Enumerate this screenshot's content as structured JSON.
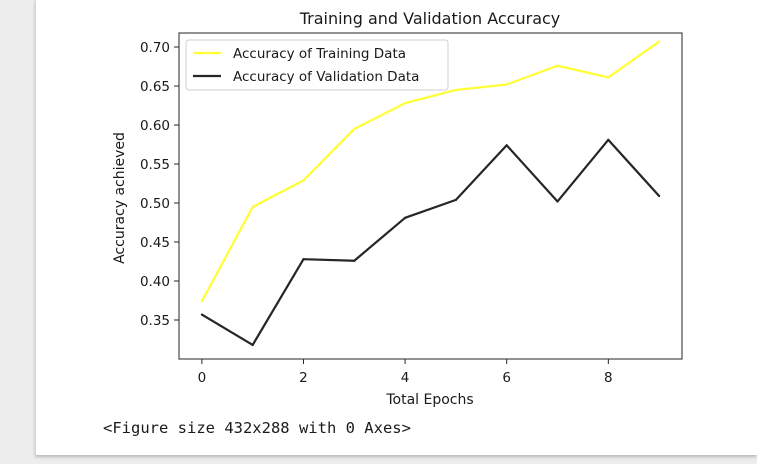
{
  "output": {
    "figure_note": "<Figure size 432x288 with 0 Axes>"
  },
  "chart_data": {
    "type": "line",
    "title": "Training and Validation Accuracy",
    "xlabel": "Total Epochs",
    "ylabel": "Accuracy achieved",
    "xlim": [
      -0.45,
      9.45
    ],
    "ylim": [
      0.3,
      0.718
    ],
    "xticks": [
      0,
      2,
      4,
      6,
      8
    ],
    "yticks": [
      0.35,
      0.4,
      0.45,
      0.5,
      0.55,
      0.6,
      0.65,
      0.7
    ],
    "ytick_labels": [
      "0.35",
      "0.40",
      "0.45",
      "0.50",
      "0.55",
      "0.60",
      "0.65",
      "0.70"
    ],
    "xtick_labels": [
      "0",
      "2",
      "4",
      "6",
      "8"
    ],
    "grid": false,
    "legend_position": "top-left",
    "x": [
      0,
      1,
      2,
      3,
      4,
      5,
      6,
      7,
      8,
      9
    ],
    "series": [
      {
        "name": "Accuracy of Training Data",
        "color": "#ffff33",
        "values": [
          0.374,
          0.495,
          0.529,
          0.595,
          0.628,
          0.645,
          0.652,
          0.676,
          0.661,
          0.707
        ]
      },
      {
        "name": "Accuracy of Validation Data",
        "color": "#262626",
        "values": [
          0.357,
          0.318,
          0.428,
          0.426,
          0.481,
          0.504,
          0.574,
          0.502,
          0.581,
          0.509
        ]
      }
    ]
  }
}
